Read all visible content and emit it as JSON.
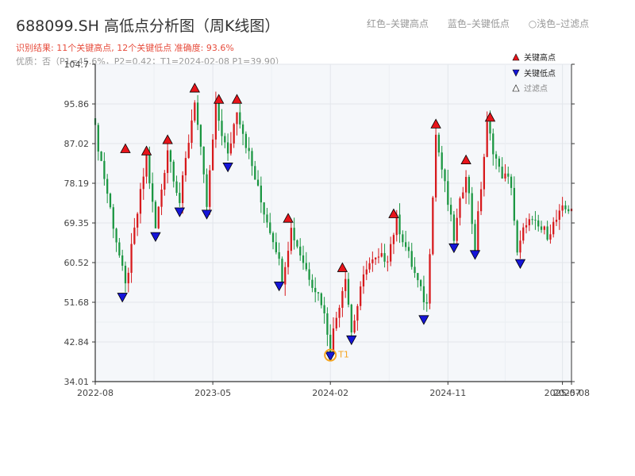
{
  "header": {
    "title": "688099.SH 高低点分析图（周K线图）",
    "result": "识别结果: 11个关键高点, 12个关键低点  准确度: 93.6%",
    "quality": "优质：否（P1=45.6%，P2=0.42；T1=2024-02-08 P1=39.90）",
    "legend_top": [
      "红色–关键高点",
      "蓝色–关键低点",
      "浅色–过滤点"
    ]
  },
  "chart_data": {
    "type": "candlestick",
    "y_ticks": [
      "34.01",
      "42.84",
      "51.68",
      "60.52",
      "69.35",
      "78.19",
      "87.02",
      "95.86",
      "104.7"
    ],
    "ylim": [
      34.01,
      104.7
    ],
    "x_ticks": [
      "2022-08",
      "2023-05",
      "2024-02",
      "2024-11",
      "2025-07",
      "2025-08"
    ],
    "x_tick_weeks": [
      0,
      39,
      78,
      117,
      155,
      158
    ],
    "n_weeks": 158,
    "grid": true,
    "colors": {
      "up": "#d7191c",
      "down": "#1a9641",
      "high": "#e8141a",
      "low": "#1515d8",
      "annotation": "#f5a623",
      "axis": "#333333",
      "plot_bg": "#f5f7fa"
    },
    "legend": {
      "position": "top-right",
      "items": [
        "关键高点",
        "关键低点",
        "过滤点"
      ]
    },
    "waypoints": [
      [
        0,
        90
      ],
      [
        10,
        55
      ],
      [
        17,
        84
      ],
      [
        20,
        68
      ],
      [
        24,
        86
      ],
      [
        28,
        74
      ],
      [
        33,
        97
      ],
      [
        37,
        73
      ],
      [
        40,
        95
      ],
      [
        44,
        84
      ],
      [
        47,
        95
      ],
      [
        55,
        74
      ],
      [
        60,
        64
      ],
      [
        62,
        57
      ],
      [
        65,
        68
      ],
      [
        70,
        59
      ],
      [
        75,
        52
      ],
      [
        78,
        42
      ],
      [
        83,
        58
      ],
      [
        85,
        45
      ],
      [
        90,
        60
      ],
      [
        97,
        62
      ],
      [
        100,
        70
      ],
      [
        108,
        54
      ],
      [
        110,
        51
      ],
      [
        113,
        89
      ],
      [
        119,
        66
      ],
      [
        123,
        81
      ],
      [
        126,
        64
      ],
      [
        130,
        91
      ],
      [
        134,
        81
      ],
      [
        138,
        78
      ],
      [
        140,
        62
      ],
      [
        143,
        70
      ],
      [
        150,
        67
      ],
      [
        155,
        72
      ],
      [
        158,
        73
      ]
    ],
    "highs": [
      {
        "week": 10,
        "price": 85.0,
        "status": "filtered"
      },
      {
        "week": 17,
        "price": 84.5
      },
      {
        "week": 24,
        "price": 87.0
      },
      {
        "week": 33,
        "price": 98.5
      },
      {
        "week": 41,
        "price": 96.0
      },
      {
        "week": 47,
        "price": 96.0
      },
      {
        "week": 64,
        "price": 69.5
      },
      {
        "week": 82,
        "price": 58.5
      },
      {
        "week": 99,
        "price": 70.5
      },
      {
        "week": 113,
        "price": 90.5
      },
      {
        "week": 123,
        "price": 82.5
      },
      {
        "week": 131,
        "price": 92.0
      }
    ],
    "lows": [
      {
        "week": 9,
        "price": 53.0
      },
      {
        "week": 20,
        "price": 66.5
      },
      {
        "week": 28,
        "price": 72.0
      },
      {
        "week": 37,
        "price": 71.5
      },
      {
        "week": 44,
        "price": 82.0
      },
      {
        "week": 61,
        "price": 55.5
      },
      {
        "week": 78,
        "price": 39.9
      },
      {
        "week": 85,
        "price": 43.5
      },
      {
        "week": 109,
        "price": 48.0
      },
      {
        "week": 119,
        "price": 64.0
      },
      {
        "week": 126,
        "price": 62.5
      },
      {
        "week": 141,
        "price": 60.5
      }
    ],
    "annotation": {
      "label": "T1",
      "week": 78,
      "price": 39.9
    }
  }
}
